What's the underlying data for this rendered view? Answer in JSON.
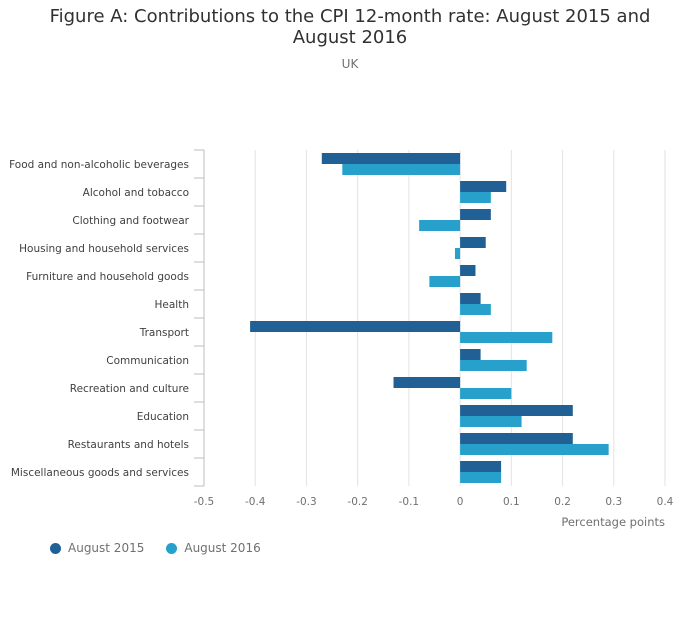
{
  "chart_data": {
    "type": "bar",
    "orientation": "horizontal",
    "title": "Figure A: Contributions to the CPI 12-month rate: August 2015 and August 2016",
    "subtitle": "UK",
    "xlabel": "Percentage points",
    "xlim": [
      -0.5,
      0.4
    ],
    "xticks": [
      -0.5,
      -0.4,
      -0.3,
      -0.2,
      -0.1,
      0,
      0.1,
      0.2,
      0.3,
      0.4
    ],
    "xtick_labels": [
      "-0.5",
      "-0.4",
      "-0.3",
      "-0.2",
      "-0.1",
      "0",
      "0.1",
      "0.2",
      "0.3",
      "0.4"
    ],
    "grid": true,
    "legend_position": "bottom-left",
    "categories": [
      "Food and non-alcoholic beverages",
      "Alcohol and tobacco",
      "Clothing and footwear",
      "Housing and household services",
      "Furniture and household goods",
      "Health",
      "Transport",
      "Communication",
      "Recreation and culture",
      "Education",
      "Restaurants and hotels",
      "Miscellaneous goods and services"
    ],
    "series": [
      {
        "name": "August 2015",
        "color": "#206095",
        "values": [
          -0.27,
          0.09,
          0.06,
          0.05,
          0.03,
          0.04,
          -0.41,
          0.04,
          -0.13,
          0.22,
          0.22,
          0.08
        ]
      },
      {
        "name": "August 2016",
        "color": "#27a0cc",
        "values": [
          -0.23,
          0.06,
          -0.08,
          -0.01,
          -0.06,
          0.06,
          0.18,
          0.13,
          0.1,
          0.12,
          0.29,
          0.08
        ]
      }
    ]
  }
}
